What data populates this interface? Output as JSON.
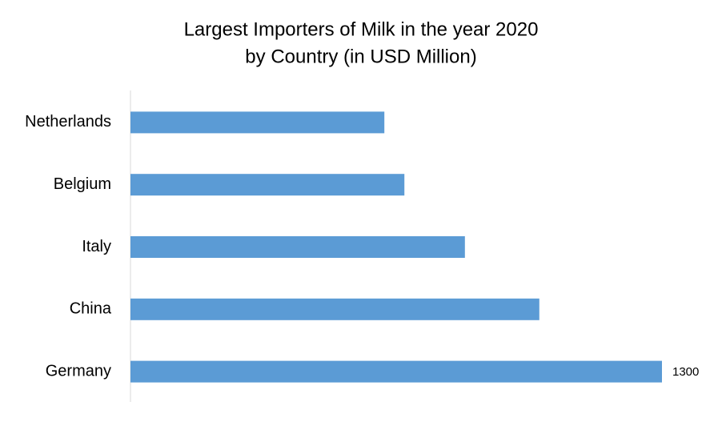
{
  "chart_data": {
    "type": "bar",
    "orientation": "horizontal",
    "title": [
      "Largest Importers of Milk in the year 2020",
      "by Country (in USD Million)"
    ],
    "categories": [
      "Netherlands",
      "Belgium",
      "Italy",
      "China",
      "Germany"
    ],
    "values": [
      621,
      670,
      818,
      1000,
      1300
    ],
    "color": "#5b9bd5"
  }
}
